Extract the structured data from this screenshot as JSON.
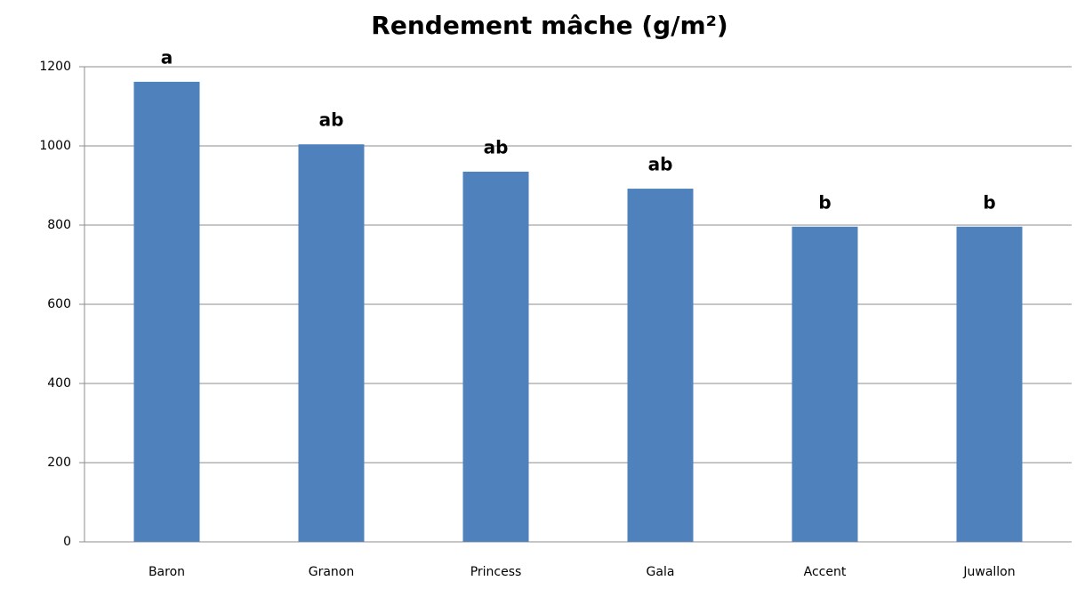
{
  "chart_data": {
    "type": "bar",
    "title": "Rendement mâche (g/m²)",
    "categories": [
      "Baron",
      "Granon",
      "Princess",
      "Gala",
      "Accent",
      "Juwallon"
    ],
    "values": [
      1162,
      1004,
      935,
      892,
      796,
      796
    ],
    "annotations": [
      "a",
      "ab",
      "ab",
      "ab",
      "b",
      "b"
    ],
    "color": "#4f81bd",
    "ylim": [
      0,
      1200
    ],
    "yticks": [
      0,
      200,
      400,
      600,
      800,
      1000,
      1200
    ],
    "grid": true
  }
}
